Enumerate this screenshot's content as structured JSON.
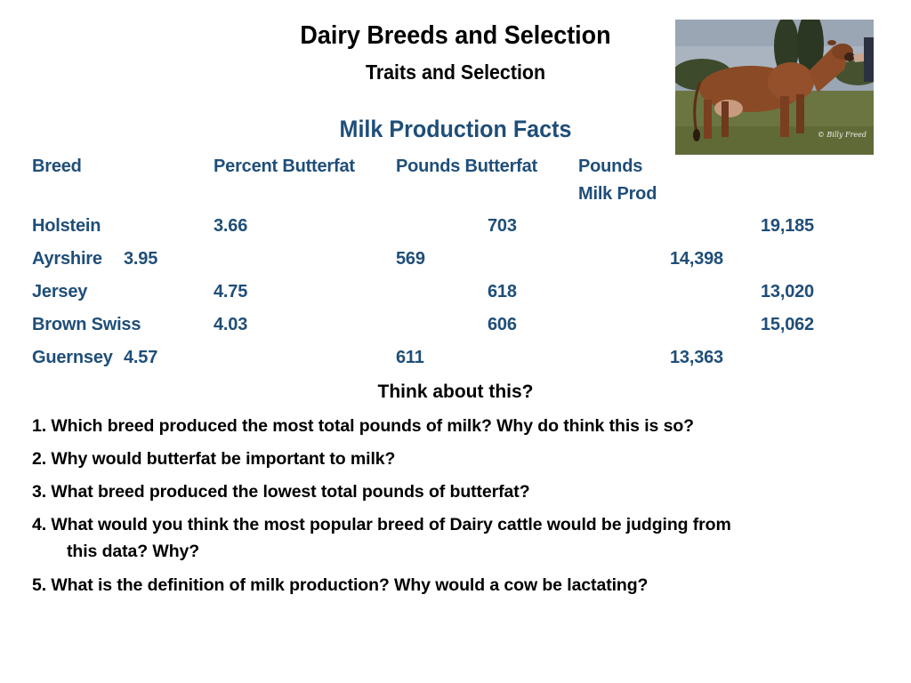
{
  "slide": {
    "title": "Dairy Breeds and Selection",
    "subtitle": "Traits and Selection"
  },
  "photo": {
    "credit": "© Billy Freed",
    "colors": {
      "sky": "#9aa6b4",
      "grass": "#6b7541",
      "cow": "#8a4a26"
    }
  },
  "table": {
    "heading": "Milk Production Facts",
    "headers": {
      "breed": "Breed",
      "percent_butterfat": "Percent Butterfat",
      "pounds_butterfat": "Pounds Butterfat",
      "pounds_milk_line1": "Pounds",
      "pounds_milk_line2": "Milk Prod"
    },
    "rows": [
      {
        "breed": "Holstein",
        "percent_butterfat": "3.66",
        "pounds_butterfat": "703",
        "pounds_milk": "19,185"
      },
      {
        "breed": "Ayrshire",
        "percent_butterfat": "3.95",
        "pounds_butterfat": "569",
        "pounds_milk": "14,398"
      },
      {
        "breed": "Jersey",
        "percent_butterfat": "4.75",
        "pounds_butterfat": "618",
        "pounds_milk": "13,020"
      },
      {
        "breed": "Brown Swiss",
        "percent_butterfat": "4.03",
        "pounds_butterfat": "606",
        "pounds_milk": "15,062"
      },
      {
        "breed": "Guernsey",
        "percent_butterfat": "4.57",
        "pounds_butterfat": "611",
        "pounds_milk": "13,363"
      }
    ]
  },
  "questions": {
    "heading": "Think about this?",
    "q1": "1.  Which breed produced the most total pounds of milk? Why do think this is so?",
    "q2": "2. Why would butterfat be important to milk?",
    "q3": "3. What breed produced the lowest total pounds of butterfat?",
    "q4_line1": "4. What would you think the most popular breed of Dairy cattle would be judging from",
    "q4_line2": "this data? Why?",
    "q5": "5. What is the definition of milk production?  Why would a cow be lactating?"
  }
}
